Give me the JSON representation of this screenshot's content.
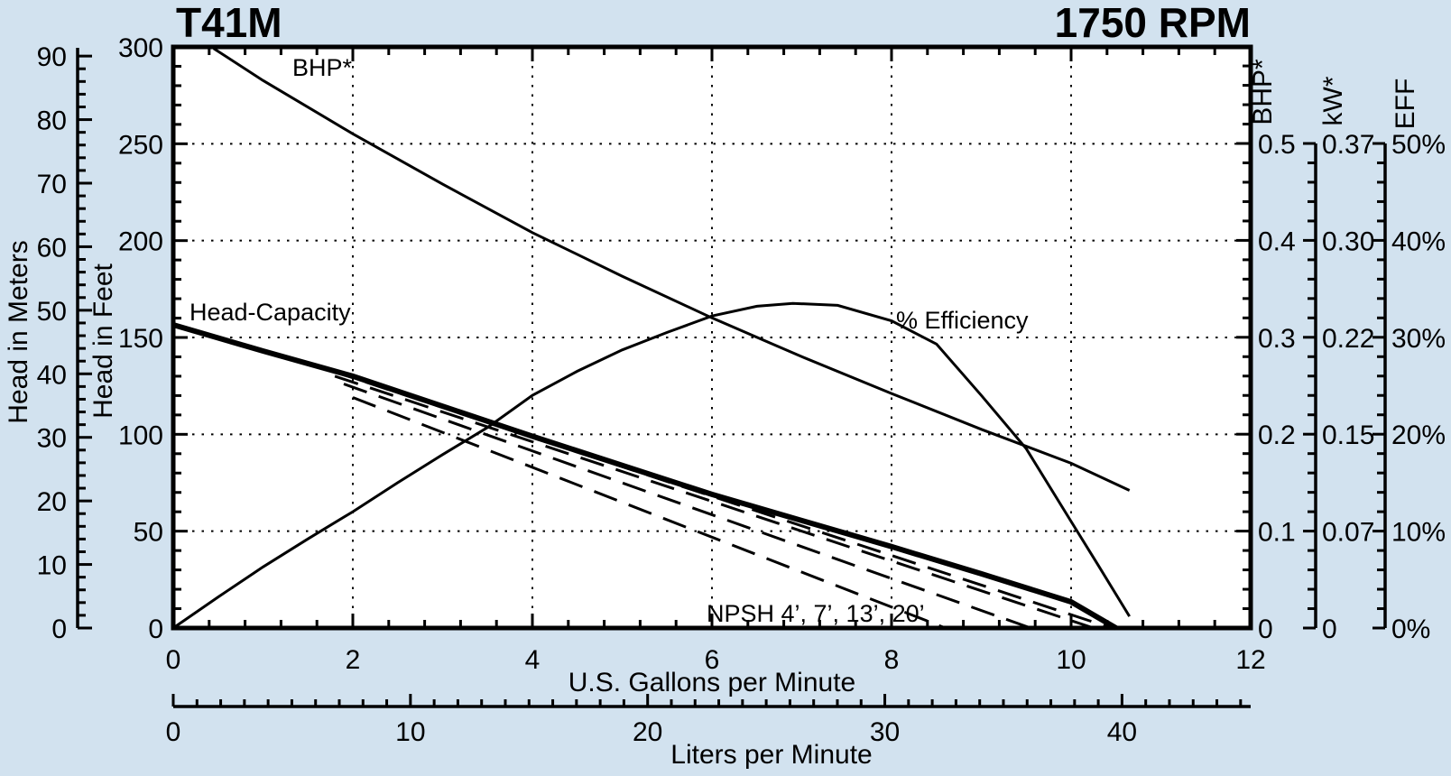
{
  "header": {
    "model": "T41M",
    "rpm": "1750 RPM"
  },
  "colors": {
    "background": "#d2e2ef",
    "plot_background": "#ffffff",
    "line": "#000000"
  },
  "chart_data": {
    "type": "line",
    "title": "T41M",
    "subtitle": "1750 RPM",
    "grid": {
      "vertical_gpm": [
        2,
        4,
        6,
        8,
        10
      ],
      "horizontal_feet": [
        50,
        100,
        150,
        200,
        250
      ]
    },
    "axes": {
      "gpm": {
        "title": "U.S. Gallons per Minute",
        "min": 0,
        "max": 12,
        "major": 2,
        "minor": 0.4,
        "tick_values": [
          0,
          2,
          4,
          6,
          8,
          10,
          12
        ],
        "tick_labels": [
          "0",
          "2",
          "4",
          "6",
          "8",
          "10",
          "12"
        ]
      },
      "lpm": {
        "title": "Liters per Minute",
        "min": 0,
        "max": 45.4,
        "major": 10,
        "minor": 1,
        "tick_values": [
          0,
          10,
          20,
          30,
          40
        ],
        "tick_labels": [
          "0",
          "10",
          "20",
          "30",
          "40"
        ]
      },
      "feet": {
        "title": "Head in Feet",
        "min": 0,
        "max": 300,
        "major": 50,
        "minor": 10,
        "tick_values": [
          0,
          50,
          100,
          150,
          200,
          250,
          300
        ],
        "tick_labels": [
          "0",
          "50",
          "100",
          "150",
          "200",
          "250",
          "300"
        ]
      },
      "meters": {
        "title": "Head in Meters",
        "min": 0,
        "max": 90,
        "major": 10,
        "minor": 2,
        "tick_values": [
          0,
          10,
          20,
          30,
          40,
          50,
          60,
          70,
          80,
          90
        ],
        "tick_labels": [
          "0",
          "10",
          "20",
          "30",
          "40",
          "50",
          "60",
          "70",
          "80",
          "90"
        ]
      },
      "bhp": {
        "title": "BHP*",
        "min": 0,
        "max": 0.5,
        "major": 0.1,
        "minor": 0.02,
        "tick_values": [
          0,
          0.1,
          0.2,
          0.3,
          0.4,
          0.5
        ],
        "tick_labels": [
          "0",
          "0.1",
          "0.2",
          "0.3",
          "0.4",
          "0.5"
        ]
      },
      "kw": {
        "title": "kW*",
        "tick_labels": [
          "0",
          "0.07",
          "0.15",
          "0.22",
          "0.30",
          "0.37"
        ]
      },
      "eff": {
        "title": "EFF",
        "tick_labels": [
          "0%",
          "10%",
          "20%",
          "30%",
          "40%",
          "50%"
        ]
      }
    },
    "annotations": {
      "bhp": "BHP*",
      "head_capacity": "Head-Capacity",
      "efficiency": "% Efficiency",
      "npsh": "NPSH 4’, 7’, 13’, 20’"
    },
    "series": [
      {
        "name": "Head-Capacity",
        "yscale": "feet",
        "style": "solid-thick",
        "x_unit": "gpm",
        "y_unit": "feet",
        "points": [
          [
            0,
            156.5
          ],
          [
            1,
            143
          ],
          [
            2,
            130
          ],
          [
            3,
            114.5
          ],
          [
            4,
            99
          ],
          [
            5,
            84
          ],
          [
            6,
            69
          ],
          [
            7,
            55.5
          ],
          [
            8,
            42
          ],
          [
            9,
            28
          ],
          [
            10,
            13.5
          ],
          [
            10.5,
            0
          ]
        ]
      },
      {
        "name": "BHP*",
        "yscale": "bhp",
        "style": "solid-thin",
        "x_unit": "gpm",
        "y_unit": "brake horsepower",
        "points": [
          [
            0.45,
            0.598
          ],
          [
            1,
            0.565
          ],
          [
            2,
            0.51
          ],
          [
            3,
            0.458
          ],
          [
            4,
            0.408
          ],
          [
            5,
            0.363
          ],
          [
            6,
            0.32
          ],
          [
            7,
            0.28
          ],
          [
            8,
            0.242
          ],
          [
            9,
            0.205
          ],
          [
            10,
            0.17
          ],
          [
            10.65,
            0.142
          ]
        ]
      },
      {
        "name": "% Efficiency",
        "yscale": "eff",
        "style": "solid-thin",
        "x_unit": "gpm",
        "y_unit": "percent",
        "points": [
          [
            0,
            0
          ],
          [
            0.5,
            3.2
          ],
          [
            1,
            6.3
          ],
          [
            1.5,
            9.2
          ],
          [
            2,
            12.0
          ],
          [
            2.5,
            15.0
          ],
          [
            3,
            17.9
          ],
          [
            3.5,
            20.7
          ],
          [
            4,
            24.0
          ],
          [
            4.5,
            26.5
          ],
          [
            5,
            28.7
          ],
          [
            5.5,
            30.5
          ],
          [
            6,
            32.2
          ],
          [
            6.5,
            33.2
          ],
          [
            6.9,
            33.5
          ],
          [
            7.4,
            33.3
          ],
          [
            8,
            31.7
          ],
          [
            8.5,
            29.3
          ],
          [
            9,
            24
          ],
          [
            9.5,
            18.5
          ],
          [
            10,
            11
          ],
          [
            10.3,
            6.5
          ],
          [
            10.65,
            1.2
          ]
        ]
      },
      {
        "name": "NPSH 20ft",
        "npsh_ft": 20,
        "yscale": "feet",
        "style": "dashed",
        "x_unit": "gpm",
        "y_unit": "feet",
        "points": [
          [
            1.75,
            133
          ],
          [
            10.45,
            0
          ]
        ]
      },
      {
        "name": "NPSH 13ft",
        "npsh_ft": 13,
        "yscale": "feet",
        "style": "dashed",
        "x_unit": "gpm",
        "y_unit": "feet",
        "points": [
          [
            1.8,
            130
          ],
          [
            10.25,
            0
          ]
        ]
      },
      {
        "name": "NPSH 7ft",
        "npsh_ft": 7,
        "yscale": "feet",
        "style": "dashed",
        "x_unit": "gpm",
        "y_unit": "feet",
        "points": [
          [
            1.9,
            126
          ],
          [
            9.55,
            0
          ]
        ]
      },
      {
        "name": "NPSH 4ft",
        "npsh_ft": 4,
        "yscale": "feet",
        "style": "dashed",
        "x_unit": "gpm",
        "y_unit": "feet",
        "points": [
          [
            2.0,
            119
          ],
          [
            8.6,
            0
          ]
        ]
      }
    ]
  }
}
